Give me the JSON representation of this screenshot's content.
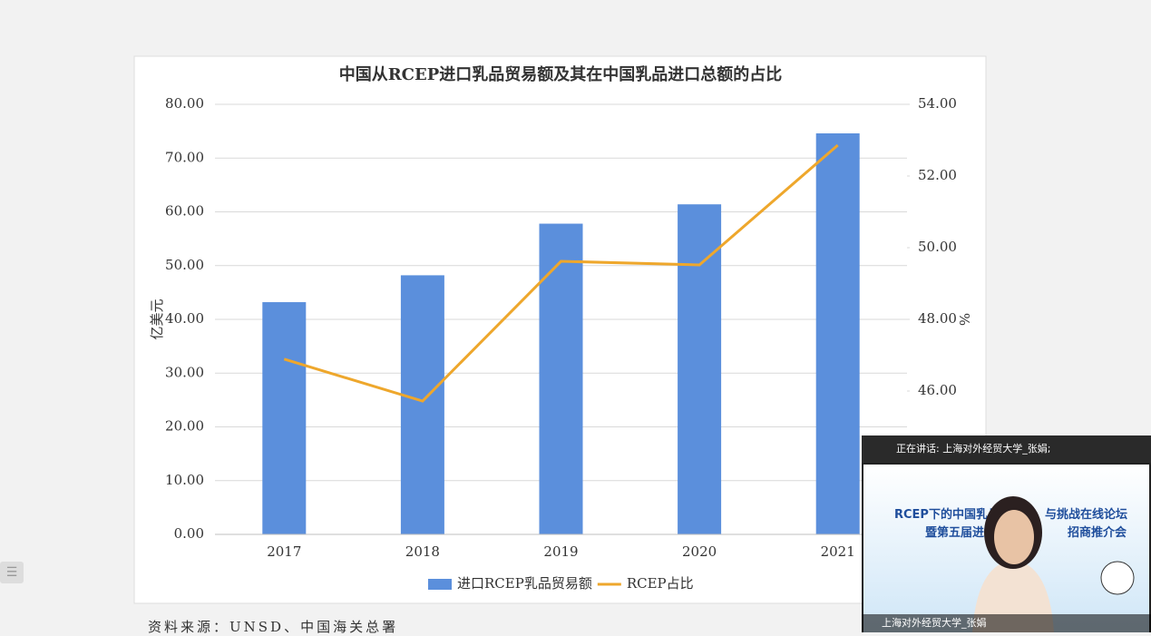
{
  "chart_data": {
    "type": "combo",
    "title": "中国从RCEP进口乳品贸易额及其在中国乳品进口总额的占比",
    "categories": [
      "2017",
      "2018",
      "2019",
      "2020",
      "2021"
    ],
    "series": [
      {
        "name": "进口RCEP乳品贸易额",
        "type": "bar",
        "color": "#5b8fdc",
        "values": [
          43.2,
          48.2,
          57.8,
          61.4,
          74.6
        ]
      },
      {
        "name": "RCEP占比",
        "type": "line",
        "color": "#eea72c",
        "axis": "y2",
        "values": [
          46.89,
          45.72,
          49.62,
          49.52,
          52.86
        ]
      }
    ],
    "ylabel": "亿美元",
    "y2label": "%",
    "ylim": [
      0,
      80
    ],
    "yticks": [
      {
        "value": 0,
        "label": "0.00"
      },
      {
        "value": 10,
        "label": "10.00"
      },
      {
        "value": 20,
        "label": "20.00"
      },
      {
        "value": 30,
        "label": "30.00"
      },
      {
        "value": 40,
        "label": "40.00"
      },
      {
        "value": 50,
        "label": "50.00"
      },
      {
        "value": 60,
        "label": "60.00"
      },
      {
        "value": 70,
        "label": "70.00"
      },
      {
        "value": 80,
        "label": "80.00"
      }
    ],
    "y2lim": [
      42,
      54
    ],
    "y2ticks": [
      {
        "value": 46,
        "label": "46.00"
      },
      {
        "value": 48,
        "label": "48.00"
      },
      {
        "value": 50,
        "label": "50.00"
      },
      {
        "value": 52,
        "label": "52.00"
      },
      {
        "value": 54,
        "label": "54.00"
      }
    ],
    "grid": true,
    "legend": "bottom"
  },
  "source": "资料来源：UNSD、中国海关总署",
  "video": {
    "speaking": "正在讲话: 上海对外经贸大学_张娟;",
    "slide_lines": [
      "RCEP下的中国乳品",
      "与挑战在线论坛",
      "暨第五届进博会",
      "招商推介会"
    ],
    "participant": "上海对外经贸大学_张娟"
  }
}
